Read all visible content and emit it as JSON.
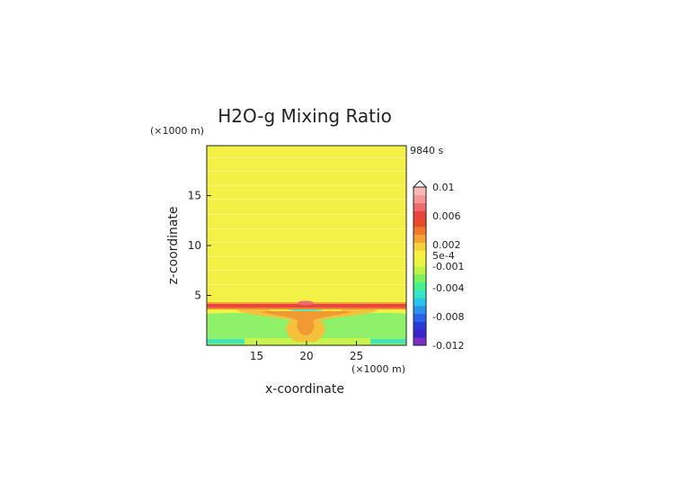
{
  "chart_data": {
    "type": "heatmap",
    "title": "H2O-g Mixing Ratio",
    "time_label": "9840 s",
    "xlabel": "x-coordinate",
    "ylabel": "z-coordinate",
    "x_unit": "(×1000 m)",
    "y_unit": "(×1000 m)",
    "xlim": [
      10,
      30
    ],
    "ylim": [
      0,
      20
    ],
    "x_ticks": [
      15,
      20,
      25
    ],
    "y_ticks": [
      5,
      10,
      15
    ],
    "colorbar": {
      "range": [
        -0.012,
        0.01
      ],
      "tick_values": [
        0.01,
        0.006,
        0.002,
        0.0005,
        -0.001,
        -0.004,
        -0.008,
        -0.012
      ],
      "tick_labels": [
        "0.01",
        "0.006",
        "0.002",
        "5e-4",
        "-0.001",
        "-0.004",
        "-0.008",
        "-0.012"
      ],
      "extend": "max",
      "colors": [
        "#7b2fc9",
        "#3a25c8",
        "#2a3ad8",
        "#2a62ea",
        "#2c92f2",
        "#2cc4ee",
        "#35e6c6",
        "#43f28d",
        "#7df05a",
        "#bff247",
        "#e9f443",
        "#f8f13f",
        "#f6d13a",
        "#f3a431",
        "#ef7a2a",
        "#ea4a2a",
        "#e8453e",
        "#ef6b6d",
        "#f59797",
        "#f8b8b5"
      ]
    },
    "field_regions": [
      {
        "region": "background z 4.4-20",
        "value": 0.0003
      },
      {
        "region": "band z 3.8-4.4",
        "value": 0.006
      },
      {
        "region": "central plume",
        "value": 0.002
      },
      {
        "region": "flank z 0.5-2.8",
        "value": -0.0007
      },
      {
        "region": "near-surface edges z 0.3-0.7",
        "value": -0.0025
      },
      {
        "region": "center layer z 3.4-3.8",
        "value": -0.0025
      }
    ]
  }
}
